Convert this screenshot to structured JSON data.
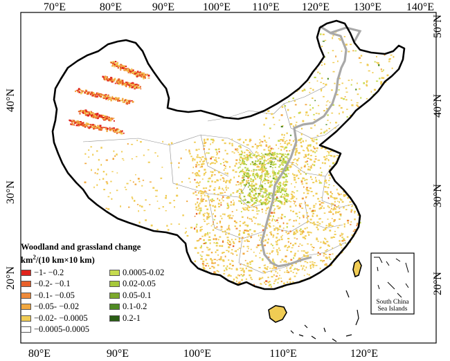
{
  "map": {
    "top_ticks": [
      "70°E",
      "80°E",
      "90°E",
      "100°E",
      "110°E",
      "120°E",
      "130°E",
      "140°E"
    ],
    "bottom_ticks": [
      "80°E",
      "90°E",
      "100°E",
      "110°E",
      "120°E"
    ],
    "left_ticks": [
      "40°N",
      "30°N",
      "20°N"
    ],
    "right_ticks": [
      "50°N",
      "40°N",
      "30°N",
      "20°N"
    ],
    "inset_label_line1": "South China",
    "inset_label_line2": "Sea Islands"
  },
  "legend": {
    "title": "Woodland and grassland change",
    "units_prefix": "km",
    "units_sup": "2",
    "units_suffix": "/(10 km×10 km)",
    "col1": [
      {
        "label": "−1- −0.2",
        "color": "#e0221b"
      },
      {
        "label": "−0.2- −0.1",
        "color": "#e8602a"
      },
      {
        "label": "−0.1- −0.05",
        "color": "#ee8a3a"
      },
      {
        "label": "−0.05- −0.02",
        "color": "#f2a83f"
      },
      {
        "label": "−0.02- −0.0005",
        "color": "#f0cc54"
      },
      {
        "label": "−0.0005-0.0005",
        "color": "#ffffff"
      }
    ],
    "col2": [
      {
        "label": "0.0005-0.02",
        "color": "#c6db4f"
      },
      {
        "label": "0.02-0.05",
        "color": "#a6c83a"
      },
      {
        "label": "0.05-0.1",
        "color": "#7ca82c"
      },
      {
        "label": "0.1-0.2",
        "color": "#4f8a22"
      },
      {
        "label": "0.2-1",
        "color": "#2a5e16"
      }
    ]
  }
}
